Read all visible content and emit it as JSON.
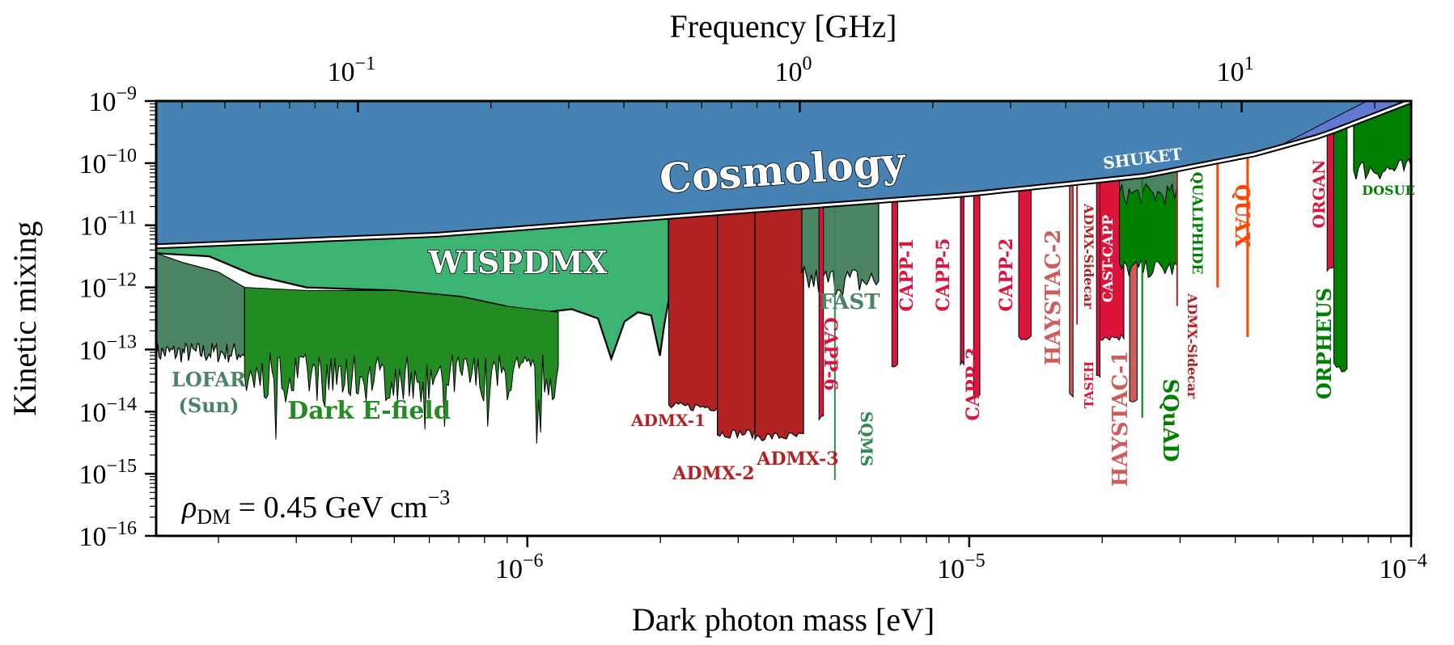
{
  "chart_data": {
    "type": "area",
    "title": "",
    "xlabel": "Dark photon mass [eV]",
    "ylabel": "Kinetic mixing",
    "top_xlabel": "Frequency [GHz]",
    "xscale": "log",
    "yscale": "log",
    "xlim_log10": [
      -6.84,
      -4
    ],
    "ylim_log10": [
      -16,
      -9
    ],
    "x_ticks": [
      {
        "log10": -6,
        "label_base": "10",
        "label_exp": "−6"
      },
      {
        "log10": -5,
        "label_base": "10",
        "label_exp": "−5"
      },
      {
        "log10": -4,
        "label_base": "10",
        "label_exp": "−4"
      }
    ],
    "top_x_ticks": [
      {
        "log10_GHz": -1,
        "label_base": "10",
        "label_exp": "−1"
      },
      {
        "log10_GHz": 0,
        "label_base": "10",
        "label_exp": "0"
      },
      {
        "log10_GHz": 1,
        "label_base": "10",
        "label_exp": "1"
      }
    ],
    "y_ticks": [
      {
        "log10": -9,
        "label_base": "10",
        "label_exp": "−9"
      },
      {
        "log10": -10,
        "label_base": "10",
        "label_exp": "−10"
      },
      {
        "log10": -11,
        "label_base": "10",
        "label_exp": "−11"
      },
      {
        "log10": -12,
        "label_base": "10",
        "label_exp": "−12"
      },
      {
        "log10": -13,
        "label_base": "10",
        "label_exp": "−13"
      },
      {
        "log10": -14,
        "label_base": "10",
        "label_exp": "−14"
      },
      {
        "log10": -15,
        "label_base": "10",
        "label_exp": "−15"
      },
      {
        "log10": -16,
        "label_base": "10",
        "label_exp": "−16"
      }
    ],
    "annotation": {
      "rho": "ρ",
      "sub": "DM",
      "text": " = 0.45 GeV cm",
      "exp": "−3"
    },
    "colors": {
      "cosmology": "#4682b4",
      "cosmology_extra": "#6279d4",
      "wispdmx": "#3cb371",
      "lofar": "#4a8463",
      "dark_efield": "#228b22",
      "admx": "#b22222",
      "capp": "#dc143c",
      "haystac": "#cd5c5c",
      "fast": "#4a8463",
      "green": "#008000",
      "quax": "#ff4500",
      "sqms": "#2e8b57"
    },
    "cosmology": {
      "label": "Cosmology",
      "boundary_log10": [
        [
          -6.84,
          -11.34
        ],
        [
          -6.2,
          -11.15
        ],
        [
          -5.6,
          -10.82
        ],
        [
          -5.0,
          -10.5
        ],
        [
          -4.6,
          -10.2
        ],
        [
          -4.35,
          -9.85
        ],
        [
          -4.2,
          -9.55
        ],
        [
          -4.0,
          -9.0
        ]
      ]
    },
    "wispdmx": {
      "label": "WISPDMX",
      "xrange_log10": [
        -6.84,
        -5.68
      ]
    },
    "regions": [
      {
        "name": "LOFAR",
        "label": "LOFAR",
        "sublabel": "(Sun)",
        "xrange_log10": [
          -6.84,
          -6.64
        ],
        "floor_log10": -13.05,
        "color": "lofar"
      },
      {
        "name": "Dark E-field",
        "label": "Dark E-field",
        "xrange_log10": [
          -6.64,
          -5.93
        ],
        "floor_log10": -13.45,
        "color": "dark_efield"
      },
      {
        "name": "ADMX-1",
        "label": "ADMX-1",
        "xrange_log10": [
          -5.68,
          -5.57
        ],
        "floor_log10": -13.92,
        "color": "admx"
      },
      {
        "name": "ADMX-2",
        "label": "ADMX-2",
        "xrange_log10": [
          -5.57,
          -5.485
        ],
        "floor_log10": -14.35,
        "color": "admx"
      },
      {
        "name": "ADMX-3",
        "label": "ADMX-3",
        "xrange_log10": [
          -5.485,
          -5.375
        ],
        "floor_log10": -14.4,
        "color": "admx"
      },
      {
        "name": "FAST",
        "label": "FAST",
        "xrange_log10": [
          -5.379,
          -5.205
        ],
        "floor_log10": -11.9,
        "color": "fast"
      },
      {
        "name": "CAPP-6",
        "label": "CAPP-6",
        "xrange_log10": [
          -5.34,
          -5.33
        ],
        "floor_log10": -14.1,
        "color": "capp"
      },
      {
        "name": "CAPP-1",
        "label": "CAPP-1",
        "xrange_log10": [
          -5.175,
          -5.162
        ],
        "floor_log10": -13.25,
        "color": "capp"
      },
      {
        "name": "CAPP-5",
        "label": "CAPP-5",
        "xrange_log10": [
          -5.02,
          -5.012
        ],
        "floor_log10": -13.25,
        "color": "capp"
      },
      {
        "name": "CAPP-3",
        "label": "CAPP-3",
        "xrange_log10": [
          -4.99,
          -4.976
        ],
        "floor_log10": -13.75,
        "color": "capp"
      },
      {
        "name": "CAPP-2",
        "label": "CAPP-2",
        "xrange_log10": [
          -4.888,
          -4.86
        ],
        "floor_log10": -12.8,
        "color": "capp"
      },
      {
        "name": "HAYSTAC-2",
        "label": "HAYSTAC-2",
        "xrange_log10": [
          -4.773,
          -4.765
        ],
        "floor_log10": -13.75,
        "color": "haystac"
      },
      {
        "name": "ADMX-Sidecar",
        "label": "ADMX-Sidecar",
        "xrange_log10": [
          -4.758,
          -4.754
        ],
        "floor_log10": -12.6,
        "color": "admx"
      },
      {
        "name": "TASEH",
        "label": "TASEH",
        "xrange_log10": [
          -4.712,
          -4.704
        ],
        "floor_log10": -13.4,
        "color": "capp"
      },
      {
        "name": "CAST-CAPP",
        "label": "CAST-CAPP",
        "xrange_log10": [
          -4.704,
          -4.65
        ],
        "floor_log10": -12.8,
        "color": "capp"
      },
      {
        "name": "HAYSTAC-1",
        "label": "HAYSTAC-1",
        "xrange_log10": [
          -4.637,
          -4.62
        ],
        "floor_log10": -13.8,
        "color": "haystac"
      },
      {
        "name": "QUALIPHIDE",
        "label": "QUALIPHIDE",
        "xrange_log10": [
          -4.66,
          -4.53
        ],
        "floor_log10": -11.7,
        "color": "green"
      },
      {
        "name": "SQuAD",
        "label": "SQuAD",
        "xrange_log10": [
          -4.61,
          -4.607
        ],
        "floor_log10": -14.1,
        "color": "green"
      },
      {
        "name": "ADMX-Sidecar-2",
        "label": "ADMX-Sidecar",
        "xrange_log10": [
          -4.531,
          -4.528
        ],
        "floor_log10": -12.3,
        "color": "admx"
      },
      {
        "name": "QUAX-1",
        "label": "QUAX",
        "xrange_log10": [
          -4.44,
          -4.436
        ],
        "floor_log10": -12.0,
        "color": "quax"
      },
      {
        "name": "QUAX-2",
        "label": "",
        "xrange_log10": [
          -4.372,
          -4.368
        ],
        "floor_log10": -12.8,
        "color": "quax"
      },
      {
        "name": "ORGAN",
        "label": "ORGAN",
        "xrange_log10": [
          -4.19,
          -4.175
        ],
        "floor_log10": -11.7,
        "color": "capp"
      },
      {
        "name": "ORPHEUS",
        "label": "ORPHEUS",
        "xrange_log10": [
          -4.175,
          -4.145
        ],
        "floor_log10": -13.3,
        "color": "green"
      },
      {
        "name": "DOSUE",
        "label": "DOSUE",
        "xrange_log10": [
          -4.13,
          -4.0
        ],
        "floor_log10": -10.1,
        "color": "green"
      },
      {
        "name": "SQMS",
        "label": "SQMS",
        "xrange_log10": [
          -5.305,
          -5.303
        ],
        "floor_log10": -15.1,
        "color": "sqms"
      },
      {
        "name": "SHUKET",
        "label": "SHUKET",
        "xrange_log10": [
          -4.66,
          -4.53
        ],
        "floor_log10": -10.5,
        "color": "fast"
      }
    ]
  }
}
